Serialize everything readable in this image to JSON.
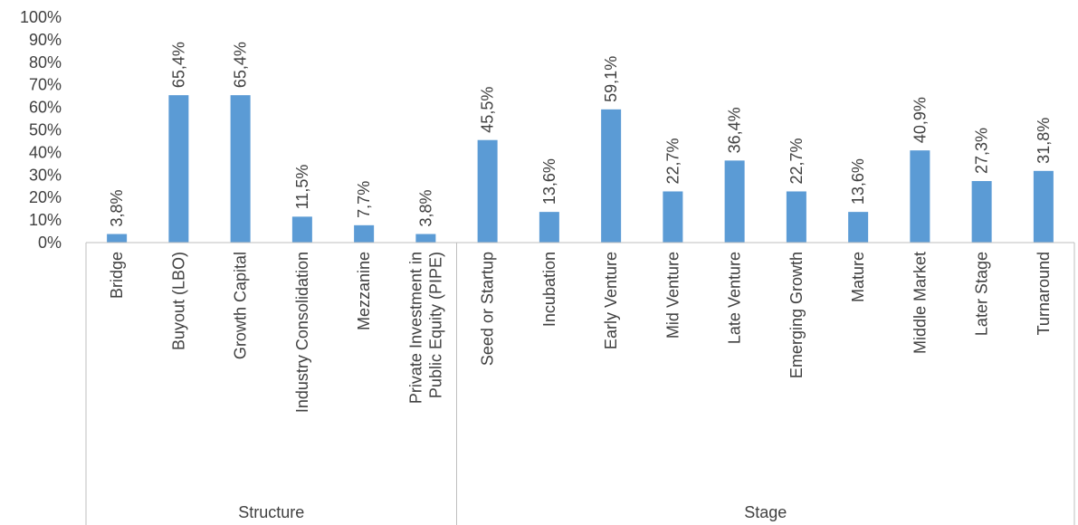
{
  "chart_data": {
    "type": "bar",
    "title": "",
    "xlabel": "",
    "ylabel": "",
    "ylim": [
      0,
      100
    ],
    "ytick_labels": [
      "0%",
      "10%",
      "20%",
      "30%",
      "40%",
      "50%",
      "60%",
      "70%",
      "80%",
      "90%",
      "100%"
    ],
    "grid": false,
    "bar_color": "#5B9BD5",
    "axis_color": "#BFBFBF",
    "text_color": "#404040",
    "groups": [
      {
        "name": "Structure",
        "categories": [
          [
            "Bridge"
          ],
          [
            "Buyout (LBO)"
          ],
          [
            "Growth Capital"
          ],
          [
            "Industry Consolidation"
          ],
          [
            "Mezzanine"
          ],
          [
            "Private Investment in",
            "Public Equity (PIPE)"
          ]
        ],
        "values": [
          3.8,
          65.4,
          65.4,
          11.5,
          7.7,
          3.8
        ],
        "value_labels": [
          "3,8%",
          "65,4%",
          "65,4%",
          "11,5%",
          "7,7%",
          "3,8%"
        ]
      },
      {
        "name": "Stage",
        "categories": [
          [
            "Seed or Startup"
          ],
          [
            "Incubation"
          ],
          [
            "Early Venture"
          ],
          [
            "Mid Venture"
          ],
          [
            "Late Venture"
          ],
          [
            "Emerging Growth"
          ],
          [
            "Mature"
          ],
          [
            "Middle Market"
          ],
          [
            "Later Stage"
          ],
          [
            "Turnaround"
          ]
        ],
        "values": [
          45.5,
          13.6,
          59.1,
          22.7,
          36.4,
          22.7,
          13.6,
          40.9,
          27.3,
          31.8
        ],
        "value_labels": [
          "45,5%",
          "13,6%",
          "59,1%",
          "22,7%",
          "36,4%",
          "22,7%",
          "13,6%",
          "40,9%",
          "27,3%",
          "31,8%"
        ]
      }
    ]
  }
}
